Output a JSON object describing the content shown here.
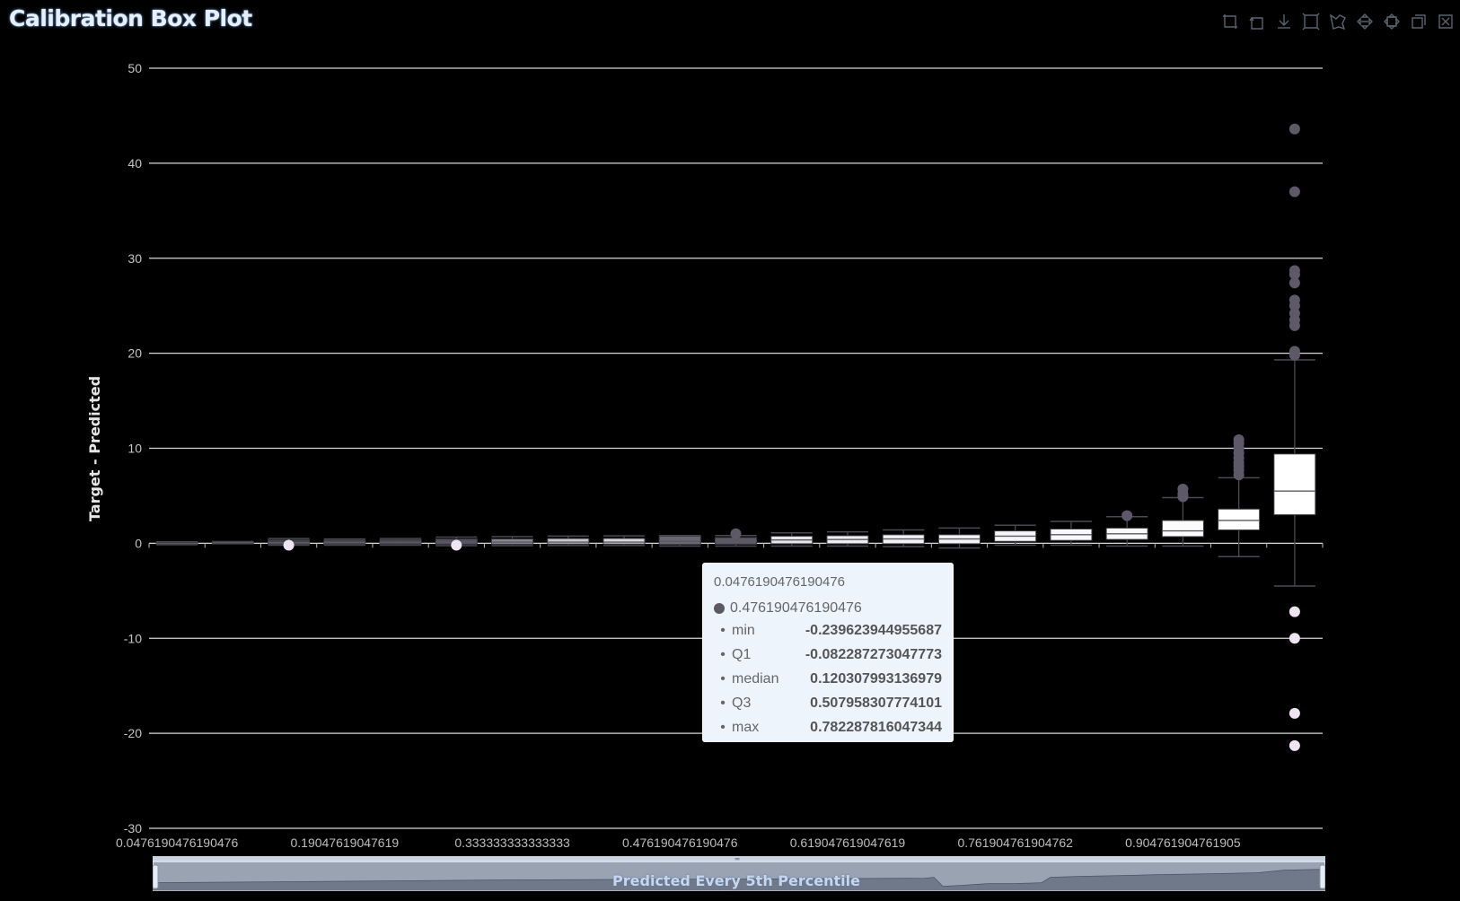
{
  "title": "Calibration Box Plot",
  "toolbar": {
    "icons": [
      "zoom-area-icon",
      "zoom-reset-icon",
      "download-icon",
      "box-select-icon",
      "lasso-select-icon",
      "pan-icon",
      "expand-icon",
      "restore-icon",
      "close-icon"
    ]
  },
  "tooltip": {
    "header": "0.0476190476190476",
    "series_label": "0.476190476190476",
    "rows": [
      {
        "key": "min",
        "value": "-0.239623944955687"
      },
      {
        "key": "Q1",
        "value": "-0.082287273047773"
      },
      {
        "key": "median",
        "value": "0.120307993136979"
      },
      {
        "key": "Q3",
        "value": "0.507958307774101"
      },
      {
        "key": "max",
        "value": "0.782287816047344"
      }
    ]
  },
  "zoom": {
    "label": "Predicted Every 5th Percentile"
  },
  "chart_data": {
    "type": "boxplot",
    "title": "Calibration Box Plot",
    "xlabel": "Predicted Every 5th Percentile",
    "ylabel": "Target - Predicted",
    "ylim": [
      -30,
      50
    ],
    "yticks": [
      -30,
      -20,
      -10,
      0,
      10,
      20,
      30,
      40,
      50
    ],
    "xtick_labels": [
      "0.0476190476190476",
      "0.19047619047619",
      "0.333333333333333",
      "0.476190476190476",
      "0.619047619047619",
      "0.761904761904762",
      "0.904761904761905"
    ],
    "grid": true,
    "box_fill_colors": [
      "#3d3a44",
      "#3d3a44",
      "#48444f",
      "#4a4652",
      "#4a4652",
      "#545060",
      "#8a8794",
      "#c9c8cf",
      "#d9d8de",
      "#6a6773",
      "#5c5966",
      "#e6e6ea",
      "#eeeef2",
      "#f2f2f5",
      "#f4f4f6",
      "#f7f7f9",
      "#f9f9fb",
      "#fafafa",
      "#fcfcfd",
      "#ffffff",
      "#ffffff"
    ],
    "boxes": [
      {
        "min": -0.15,
        "q1": -0.12,
        "median": -0.02,
        "q3": 0.1,
        "max": 0.15,
        "outliers": []
      },
      {
        "min": -0.05,
        "q1": -0.02,
        "median": 0.05,
        "q3": 0.12,
        "max": 0.18,
        "outliers": []
      },
      {
        "min": -0.2,
        "q1": -0.12,
        "median": 0.05,
        "q3": 0.35,
        "max": 0.5,
        "outliers": [
          -0.2
        ]
      },
      {
        "min": -0.2,
        "q1": -0.12,
        "median": 0.1,
        "q3": 0.35,
        "max": 0.45,
        "outliers": []
      },
      {
        "min": -0.2,
        "q1": -0.1,
        "median": 0.1,
        "q3": 0.38,
        "max": 0.5,
        "outliers": []
      },
      {
        "min": -0.25,
        "q1": -0.1,
        "median": 0.12,
        "q3": 0.45,
        "max": 0.65,
        "outliers": [
          -0.2
        ]
      },
      {
        "min": -0.25,
        "q1": -0.1,
        "median": 0.12,
        "q3": 0.45,
        "max": 0.7,
        "outliers": []
      },
      {
        "min": -0.24,
        "q1": -0.08,
        "median": 0.12,
        "q3": 0.5,
        "max": 0.75,
        "outliers": []
      },
      {
        "min": -0.24,
        "q1": -0.08,
        "median": 0.12,
        "q3": 0.51,
        "max": 0.78,
        "outliers": []
      },
      {
        "min": -0.3,
        "q1": -0.12,
        "median": 0.2,
        "q3": 0.75,
        "max": 0.82,
        "outliers": []
      },
      {
        "min": -0.3,
        "q1": -0.1,
        "median": 0.25,
        "q3": 0.6,
        "max": 0.82,
        "outliers": [
          1.0
        ]
      },
      {
        "min": -0.3,
        "q1": -0.05,
        "median": 0.35,
        "q3": 0.75,
        "max": 1.1,
        "outliers": []
      },
      {
        "min": -0.3,
        "q1": -0.05,
        "median": 0.4,
        "q3": 0.8,
        "max": 1.2,
        "outliers": []
      },
      {
        "min": -0.35,
        "q1": -0.05,
        "median": 0.45,
        "q3": 0.9,
        "max": 1.4,
        "outliers": []
      },
      {
        "min": -0.5,
        "q1": -0.05,
        "median": 0.45,
        "q3": 0.9,
        "max": 1.6,
        "outliers": []
      },
      {
        "min": -0.2,
        "q1": 0.2,
        "median": 0.75,
        "q3": 1.3,
        "max": 1.9,
        "outliers": []
      },
      {
        "min": -0.2,
        "q1": 0.3,
        "median": 0.9,
        "q3": 1.5,
        "max": 2.3,
        "outliers": []
      },
      {
        "min": -0.3,
        "q1": 0.4,
        "median": 1.0,
        "q3": 1.6,
        "max": 2.8,
        "outliers": [
          2.9
        ]
      },
      {
        "min": -0.3,
        "q1": 0.7,
        "median": 1.3,
        "q3": 2.4,
        "max": 4.8,
        "outliers": [
          4.9,
          5.2,
          5.7
        ]
      },
      {
        "min": -1.4,
        "q1": 1.4,
        "median": 2.4,
        "q3": 3.6,
        "max": 6.9,
        "outliers": [
          7.2,
          7.7,
          8.1,
          8.5,
          9.0,
          9.5,
          10.0,
          10.5,
          10.9
        ]
      },
      {
        "min": -4.5,
        "q1": 3.0,
        "median": 5.5,
        "q3": 9.4,
        "max": 19.3,
        "outliers": [
          19.8,
          20.2,
          22.9,
          23.5,
          24.2,
          25.0,
          25.6,
          27.4,
          28.3,
          28.7,
          37.0,
          43.6,
          -7.2,
          -10.0,
          -17.9,
          -21.3
        ]
      }
    ]
  }
}
